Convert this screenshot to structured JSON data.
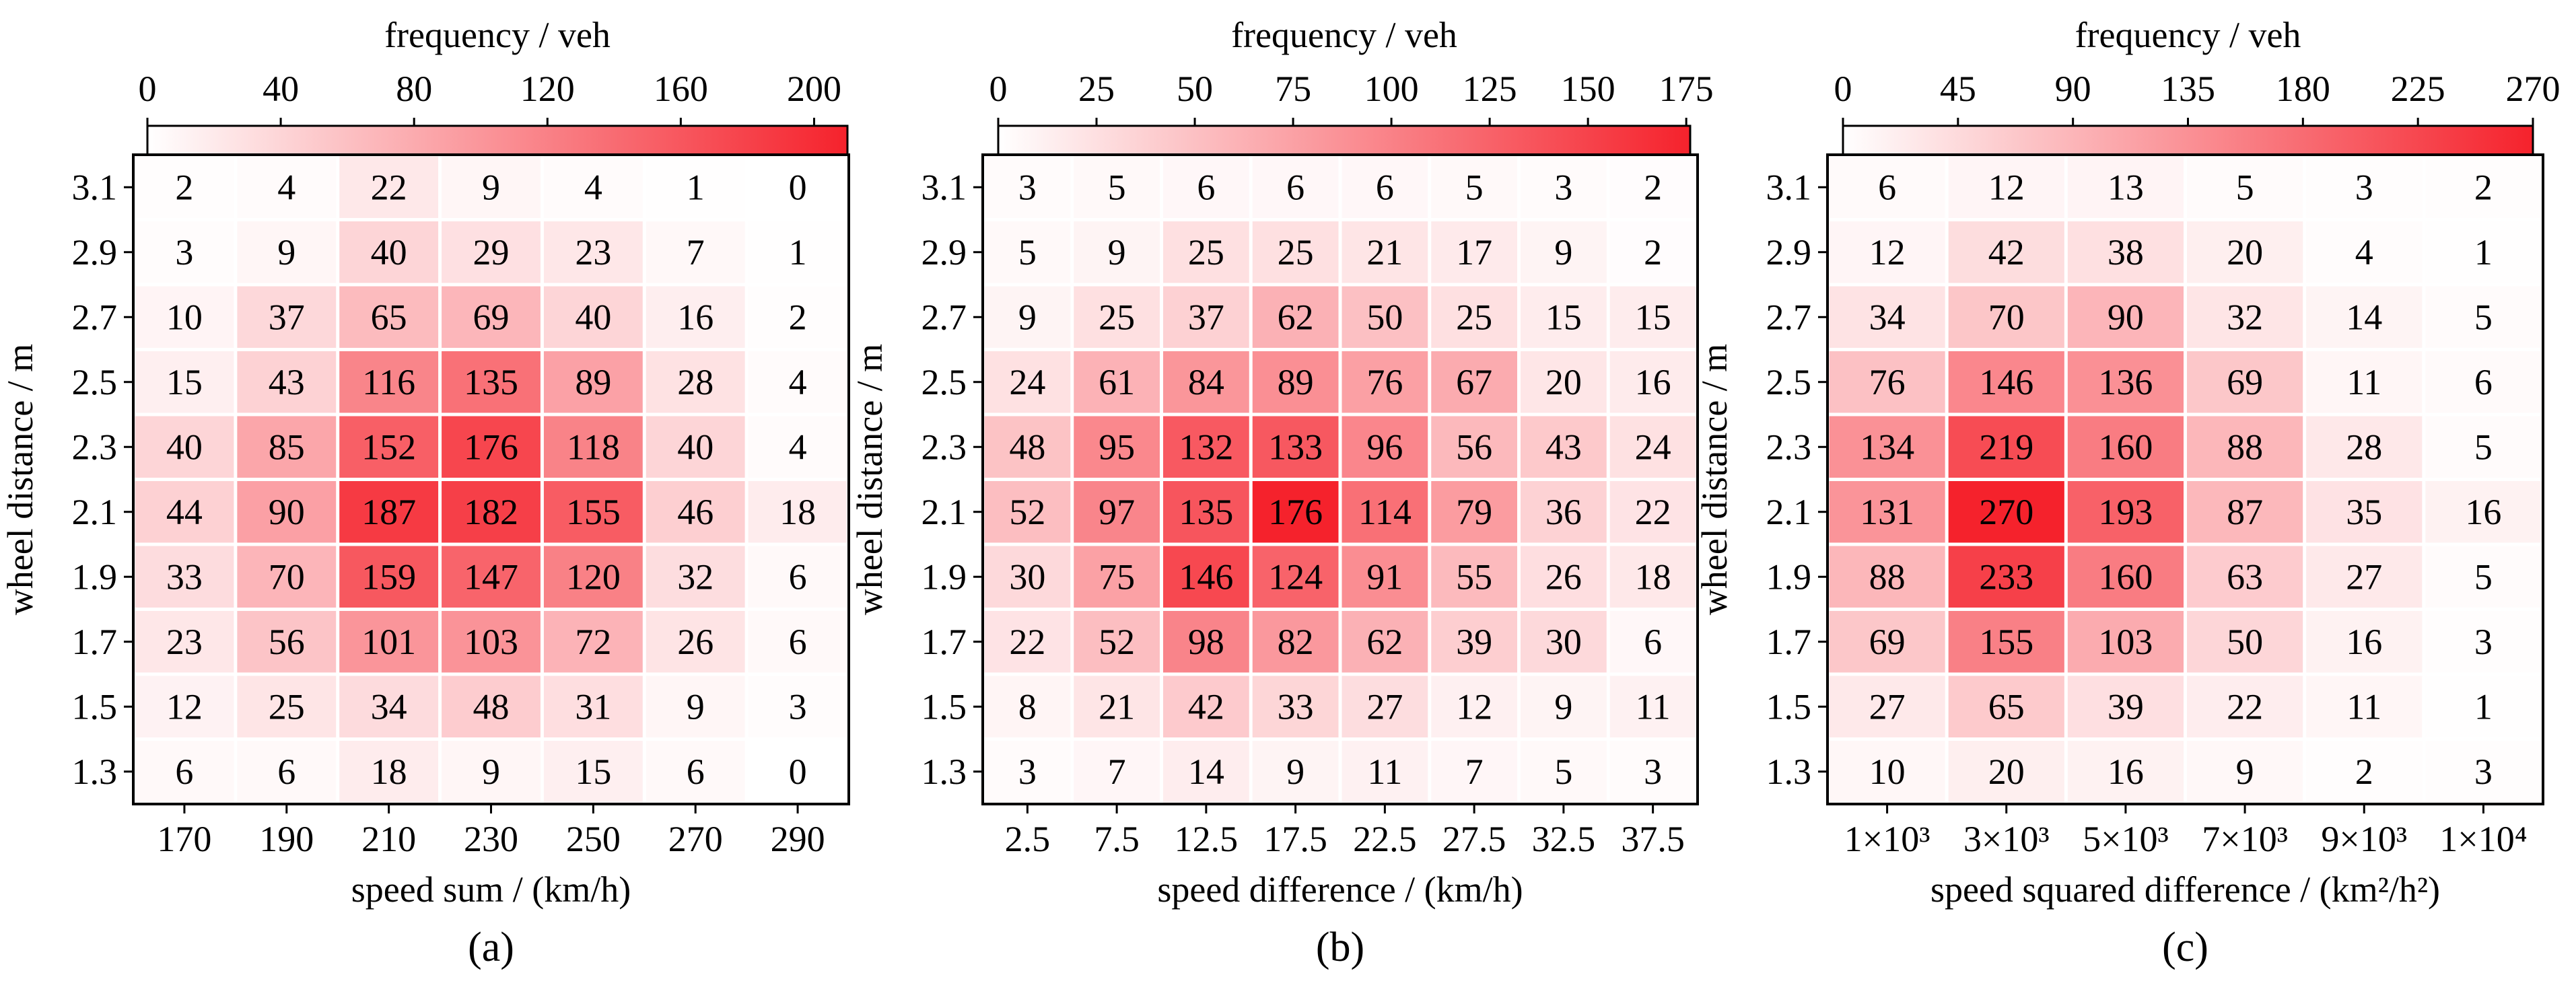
{
  "chart_data": [
    {
      "type": "heatmap",
      "panel_label": "(a)",
      "colorbar": {
        "title": "frequency / veh",
        "ticks": [
          "0",
          "40",
          "80",
          "120",
          "160",
          "200"
        ],
        "tick_values": [
          0,
          40,
          80,
          120,
          160,
          200
        ],
        "max": 210,
        "color_low": "#ffffff",
        "color_high": "#f5222c"
      },
      "xlabel": "speed sum / (km/h)",
      "ylabel": "wheel distance / m",
      "x_ticks": [
        "170",
        "190",
        "210",
        "230",
        "250",
        "270",
        "290"
      ],
      "y_ticks": [
        "3.1",
        "2.9",
        "2.7",
        "2.5",
        "2.3",
        "2.1",
        "1.9",
        "1.7",
        "1.5",
        "1.3"
      ],
      "values": [
        [
          2,
          4,
          22,
          9,
          4,
          1,
          0
        ],
        [
          3,
          9,
          40,
          29,
          23,
          7,
          1
        ],
        [
          10,
          37,
          65,
          69,
          40,
          16,
          2
        ],
        [
          15,
          43,
          116,
          135,
          89,
          28,
          4
        ],
        [
          40,
          85,
          152,
          176,
          118,
          40,
          4
        ],
        [
          44,
          90,
          187,
          182,
          155,
          46,
          18
        ],
        [
          33,
          70,
          159,
          147,
          120,
          32,
          6
        ],
        [
          23,
          56,
          101,
          103,
          72,
          26,
          6
        ],
        [
          12,
          25,
          34,
          48,
          31,
          9,
          3
        ],
        [
          6,
          6,
          18,
          9,
          15,
          6,
          0
        ]
      ]
    },
    {
      "type": "heatmap",
      "panel_label": "(b)",
      "colorbar": {
        "title": "frequency / veh",
        "ticks": [
          "0",
          "25",
          "50",
          "75",
          "100",
          "125",
          "150",
          "175"
        ],
        "tick_values": [
          0,
          25,
          50,
          75,
          100,
          125,
          150,
          175
        ],
        "max": 176,
        "color_low": "#ffffff",
        "color_high": "#f5222c"
      },
      "xlabel": "speed difference / (km/h)",
      "ylabel": "wheel distance / m",
      "x_ticks": [
        "2.5",
        "7.5",
        "12.5",
        "17.5",
        "22.5",
        "27.5",
        "32.5",
        "37.5"
      ],
      "y_ticks": [
        "3.1",
        "2.9",
        "2.7",
        "2.5",
        "2.3",
        "2.1",
        "1.9",
        "1.7",
        "1.5",
        "1.3"
      ],
      "values": [
        [
          3,
          5,
          6,
          6,
          6,
          5,
          3,
          2
        ],
        [
          5,
          9,
          25,
          25,
          21,
          17,
          9,
          2
        ],
        [
          9,
          25,
          37,
          62,
          50,
          25,
          15,
          15
        ],
        [
          24,
          61,
          84,
          89,
          76,
          67,
          20,
          16
        ],
        [
          48,
          95,
          132,
          133,
          96,
          56,
          43,
          24
        ],
        [
          52,
          97,
          135,
          176,
          114,
          79,
          36,
          22
        ],
        [
          30,
          75,
          146,
          124,
          91,
          55,
          26,
          18
        ],
        [
          22,
          52,
          98,
          82,
          62,
          39,
          30,
          6
        ],
        [
          8,
          21,
          42,
          33,
          27,
          12,
          9,
          11
        ],
        [
          3,
          7,
          14,
          9,
          11,
          7,
          5,
          3
        ]
      ]
    },
    {
      "type": "heatmap",
      "panel_label": "(c)",
      "colorbar": {
        "title": "frequency / veh",
        "ticks": [
          "0",
          "45",
          "90",
          "135",
          "180",
          "225",
          "270"
        ],
        "tick_values": [
          0,
          45,
          90,
          135,
          180,
          225,
          270
        ],
        "max": 270,
        "color_low": "#ffffff",
        "color_high": "#f5222c"
      },
      "xlabel": "speed squared difference / (km²/h²)",
      "ylabel": "wheel distance / m",
      "x_ticks": [
        "1×10³",
        "3×10³",
        "5×10³",
        "7×10³",
        "9×10³",
        "1×10⁴"
      ],
      "y_ticks": [
        "3.1",
        "2.9",
        "2.7",
        "2.5",
        "2.3",
        "2.1",
        "1.9",
        "1.7",
        "1.5",
        "1.3"
      ],
      "values": [
        [
          6,
          12,
          13,
          5,
          3,
          2
        ],
        [
          12,
          42,
          38,
          20,
          4,
          1
        ],
        [
          34,
          70,
          90,
          32,
          14,
          5
        ],
        [
          76,
          146,
          136,
          69,
          11,
          6
        ],
        [
          134,
          219,
          160,
          88,
          28,
          5
        ],
        [
          131,
          270,
          193,
          87,
          35,
          16
        ],
        [
          88,
          233,
          160,
          63,
          27,
          5
        ],
        [
          69,
          155,
          103,
          50,
          16,
          3
        ],
        [
          27,
          65,
          39,
          22,
          11,
          1
        ],
        [
          10,
          20,
          16,
          9,
          2,
          3
        ]
      ]
    }
  ]
}
